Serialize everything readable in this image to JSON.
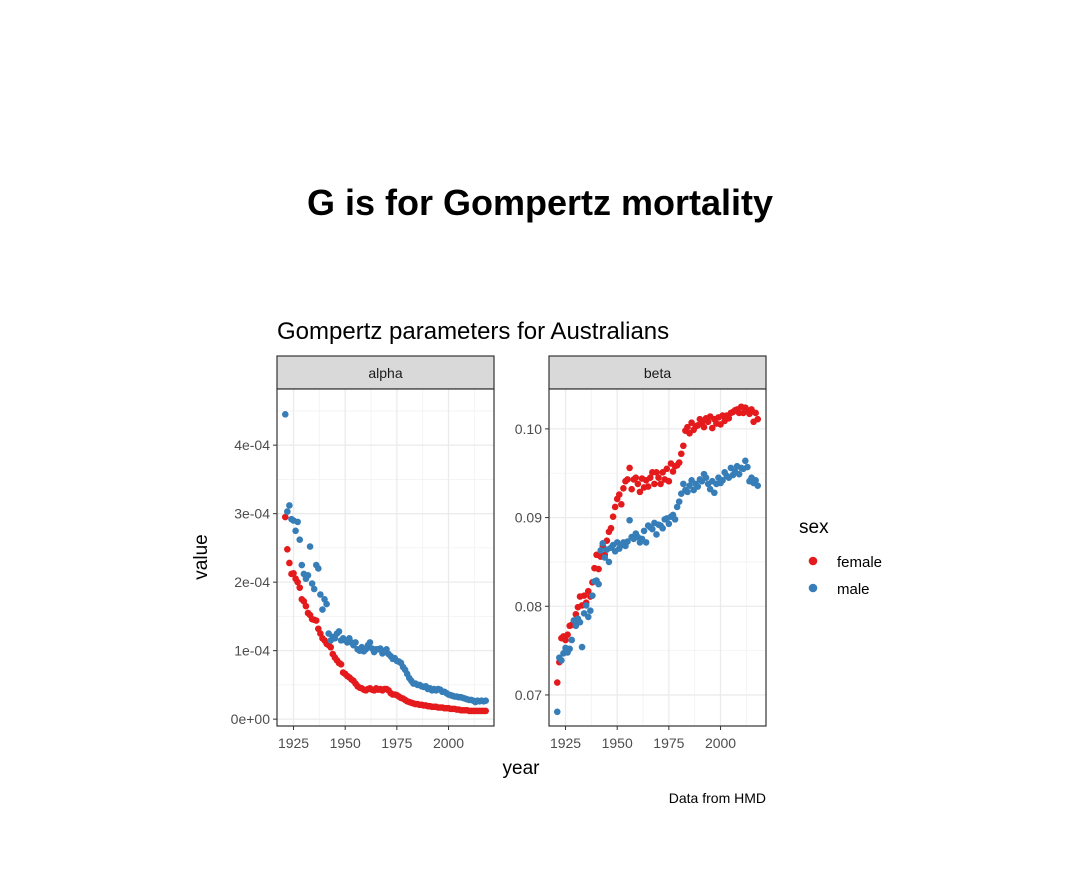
{
  "slide": {
    "title": "G is for Gompertz mortality"
  },
  "chart_data": {
    "type": "scatter",
    "title": "Gompertz parameters for Australians",
    "xlabel": "year",
    "ylabel": "value",
    "caption": "Data from HMD",
    "legend": {
      "title": "sex",
      "position": "right"
    },
    "grid": true,
    "series_colors": {
      "female": "#E41A1C",
      "male": "#377EB8"
    },
    "panels": [
      {
        "strip": "alpha",
        "xlim": [
          1917,
          2022
        ],
        "ylim": [
          -1e-05,
          0.000482
        ],
        "x_ticks": [
          1925,
          1950,
          1975,
          2000
        ],
        "x_tick_labels": [
          "1925",
          "1950",
          "1975",
          "2000"
        ],
        "y_ticks": [
          0,
          0.0001,
          0.0002,
          0.0003,
          0.0004
        ],
        "y_tick_labels": [
          "0e+00",
          "1e-04",
          "2e-04",
          "3e-04",
          "4e-04"
        ],
        "series": [
          {
            "name": "female",
            "x": [
              1921,
              1922,
              1923,
              1924,
              1925,
              1926,
              1927,
              1928,
              1929,
              1930,
              1931,
              1932,
              1933,
              1934,
              1935,
              1936,
              1937,
              1938,
              1939,
              1940,
              1941,
              1942,
              1943,
              1944,
              1945,
              1946,
              1947,
              1948,
              1949,
              1950,
              1951,
              1952,
              1953,
              1954,
              1955,
              1956,
              1957,
              1958,
              1959,
              1960,
              1961,
              1962,
              1963,
              1964,
              1965,
              1966,
              1967,
              1968,
              1969,
              1970,
              1971,
              1972,
              1973,
              1974,
              1975,
              1976,
              1977,
              1978,
              1979,
              1980,
              1981,
              1982,
              1983,
              1984,
              1985,
              1986,
              1987,
              1988,
              1989,
              1990,
              1991,
              1992,
              1993,
              1994,
              1995,
              1996,
              1997,
              1998,
              1999,
              2000,
              2001,
              2002,
              2003,
              2004,
              2005,
              2006,
              2007,
              2008,
              2009,
              2010,
              2011,
              2012,
              2013,
              2014,
              2015,
              2016,
              2017,
              2018
            ],
            "y": [
              0.000295,
              0.000248,
              0.000228,
              0.000212,
              0.000213,
              0.000205,
              0.0002,
              0.000192,
              0.000175,
              0.000172,
              0.000165,
              0.000155,
              0.000152,
              0.000146,
              0.000145,
              0.000144,
              0.000132,
              0.000125,
              0.000118,
              0.000115,
              0.00011,
              0.000108,
              0.000105,
              9.5e-05,
              9e-05,
              8.6e-05,
              8.2e-05,
              8e-05,
              6.8e-05,
              6.6e-05,
              6.3e-05,
              6.1e-05,
              5.8e-05,
              5.6e-05,
              5.2e-05,
              4.8e-05,
              4.6e-05,
              4.5e-05,
              4.3e-05,
              4.2e-05,
              4.4e-05,
              4.5e-05,
              4.3e-05,
              4.2e-05,
              4.5e-05,
              4.3e-05,
              4.4e-05,
              4.2e-05,
              4.4e-05,
              4.4e-05,
              4.2e-05,
              3.8e-05,
              3.6e-05,
              3.6e-05,
              3.5e-05,
              3.3e-05,
              3.1e-05,
              3e-05,
              2.8e-05,
              2.6e-05,
              2.5e-05,
              2.4e-05,
              2.3e-05,
              2.2e-05,
              2.2e-05,
              2.1e-05,
              2.1e-05,
              2e-05,
              2e-05,
              1.9e-05,
              1.9e-05,
              1.8e-05,
              1.8e-05,
              1.8e-05,
              1.7e-05,
              1.7e-05,
              1.7e-05,
              1.6e-05,
              1.6e-05,
              1.6e-05,
              1.5e-05,
              1.5e-05,
              1.5e-05,
              1.4e-05,
              1.4e-05,
              1.3e-05,
              1.3e-05,
              1.3e-05,
              1.3e-05,
              1.2e-05,
              1.2e-05,
              1.2e-05,
              1.2e-05,
              1.2e-05,
              1.2e-05,
              1.2e-05,
              1.2e-05,
              1.2e-05
            ]
          },
          {
            "name": "male",
            "x": [
              1921,
              1922,
              1923,
              1924,
              1925,
              1926,
              1927,
              1928,
              1929,
              1930,
              1931,
              1932,
              1933,
              1934,
              1935,
              1936,
              1937,
              1938,
              1939,
              1940,
              1941,
              1942,
              1943,
              1944,
              1945,
              1946,
              1947,
              1948,
              1949,
              1950,
              1951,
              1952,
              1953,
              1954,
              1955,
              1956,
              1957,
              1958,
              1959,
              1960,
              1961,
              1962,
              1963,
              1964,
              1965,
              1966,
              1967,
              1968,
              1969,
              1970,
              1971,
              1972,
              1973,
              1974,
              1975,
              1976,
              1977,
              1978,
              1979,
              1980,
              1981,
              1982,
              1983,
              1984,
              1985,
              1986,
              1987,
              1988,
              1989,
              1990,
              1991,
              1992,
              1993,
              1994,
              1995,
              1996,
              1997,
              1998,
              1999,
              2000,
              2001,
              2002,
              2003,
              2004,
              2005,
              2006,
              2007,
              2008,
              2009,
              2010,
              2011,
              2012,
              2013,
              2014,
              2015,
              2016,
              2017,
              2018
            ],
            "y": [
              0.000445,
              0.000303,
              0.000312,
              0.000292,
              0.00029,
              0.000275,
              0.000288,
              0.000262,
              0.000225,
              0.000212,
              0.000205,
              0.00021,
              0.000252,
              0.000198,
              0.00019,
              0.000225,
              0.00022,
              0.000182,
              0.00016,
              0.000175,
              0.000168,
              0.000125,
              0.000115,
              0.00012,
              0.000118,
              0.000125,
              0.000128,
              0.000115,
              0.000118,
              0.000115,
              0.000112,
              0.000118,
              0.000112,
              0.000108,
              0.000112,
              0.000102,
              0.0001,
              0.000105,
              9.9e-05,
              0.000102,
              0.000108,
              0.000112,
              0.000103,
              9.8e-05,
              0.000102,
              0.000102,
              0.000103,
              9.6e-05,
              9.8e-05,
              0.000102,
              9.5e-05,
              9.2e-05,
              8.8e-05,
              8.9e-05,
              8.5e-05,
              8.4e-05,
              8.2e-05,
              7.6e-05,
              7.2e-05,
              6.6e-05,
              6e-05,
              5.6e-05,
              5.2e-05,
              5.2e-05,
              5e-05,
              5e-05,
              4.8e-05,
              4.7e-05,
              4.8e-05,
              4.4e-05,
              4.5e-05,
              4.2e-05,
              4.4e-05,
              4.2e-05,
              4.4e-05,
              4.3e-05,
              4e-05,
              4e-05,
              3.8e-05,
              3.6e-05,
              3.5e-05,
              3.4e-05,
              3.3e-05,
              3.3e-05,
              3.2e-05,
              3.2e-05,
              3.1e-05,
              3e-05,
              2.9e-05,
              2.8e-05,
              2.8e-05,
              2.7e-05,
              2.5e-05,
              2.7e-05,
              2.6e-05,
              2.7e-05,
              2.6e-05,
              2.7e-05
            ]
          }
        ]
      },
      {
        "strip": "beta",
        "xlim": [
          1917,
          2022
        ],
        "ylim": [
          0.0665,
          0.1045
        ],
        "x_ticks": [
          1925,
          1950,
          1975,
          2000
        ],
        "x_tick_labels": [
          "1925",
          "1950",
          "1975",
          "2000"
        ],
        "y_ticks": [
          0.07,
          0.08,
          0.09,
          0.1
        ],
        "y_tick_labels": [
          "0.07",
          "0.08",
          "0.09",
          "0.10"
        ],
        "series": [
          {
            "name": "female",
            "x": [
              1921,
              1922,
              1923,
              1924,
              1925,
              1926,
              1927,
              1928,
              1929,
              1930,
              1931,
              1932,
              1933,
              1934,
              1935,
              1936,
              1937,
              1938,
              1939,
              1940,
              1941,
              1942,
              1943,
              1944,
              1945,
              1946,
              1947,
              1948,
              1949,
              1950,
              1951,
              1952,
              1953,
              1954,
              1955,
              1956,
              1957,
              1958,
              1959,
              1960,
              1961,
              1962,
              1963,
              1964,
              1965,
              1966,
              1967,
              1968,
              1969,
              1970,
              1971,
              1972,
              1973,
              1974,
              1975,
              1976,
              1977,
              1978,
              1979,
              1980,
              1981,
              1982,
              1983,
              1984,
              1985,
              1986,
              1987,
              1988,
              1989,
              1990,
              1991,
              1992,
              1993,
              1994,
              1995,
              1996,
              1997,
              1998,
              1999,
              2000,
              2001,
              2002,
              2003,
              2004,
              2005,
              2006,
              2007,
              2008,
              2009,
              2010,
              2011,
              2012,
              2013,
              2014,
              2015,
              2016,
              2017,
              2018
            ],
            "y": [
              0.0714,
              0.0737,
              0.0764,
              0.0766,
              0.0762,
              0.0768,
              0.0778,
              0.0779,
              0.0781,
              0.0791,
              0.0799,
              0.0811,
              0.0801,
              0.0812,
              0.0804,
              0.0817,
              0.0811,
              0.0827,
              0.0843,
              0.0858,
              0.0842,
              0.0856,
              0.0868,
              0.0858,
              0.0874,
              0.0884,
              0.0888,
              0.0901,
              0.0912,
              0.0921,
              0.0926,
              0.0915,
              0.0933,
              0.0941,
              0.0943,
              0.0956,
              0.0932,
              0.0943,
              0.0945,
              0.0938,
              0.0929,
              0.0944,
              0.0934,
              0.0942,
              0.0935,
              0.0945,
              0.0951,
              0.0938,
              0.0951,
              0.0945,
              0.0938,
              0.0951,
              0.0943,
              0.0955,
              0.0941,
              0.0961,
              0.0952,
              0.0958,
              0.0959,
              0.0962,
              0.0972,
              0.0981,
              0.0998,
              0.1002,
              0.0995,
              0.1007,
              0.0999,
              0.1003,
              0.1004,
              0.1011,
              0.1007,
              0.1002,
              0.1012,
              0.1008,
              0.1014,
              0.1001,
              0.1011,
              0.1006,
              0.1013,
              0.1005,
              0.1015,
              0.1009,
              0.1015,
              0.1012,
              0.1018,
              0.1019,
              0.1021,
              0.1022,
              0.1018,
              0.1025,
              0.1018,
              0.1024,
              0.1021,
              0.1017,
              0.1022,
              0.1008,
              0.1018,
              0.1011
            ]
          },
          {
            "name": "male",
            "x": [
              1921,
              1922,
              1923,
              1924,
              1925,
              1926,
              1927,
              1928,
              1929,
              1930,
              1931,
              1932,
              1933,
              1934,
              1935,
              1936,
              1937,
              1938,
              1939,
              1940,
              1941,
              1942,
              1943,
              1944,
              1945,
              1946,
              1947,
              1948,
              1949,
              1950,
              1951,
              1952,
              1953,
              1954,
              1955,
              1956,
              1957,
              1958,
              1959,
              1960,
              1961,
              1962,
              1963,
              1964,
              1965,
              1966,
              1967,
              1968,
              1969,
              1970,
              1971,
              1972,
              1973,
              1974,
              1975,
              1976,
              1977,
              1978,
              1979,
              1980,
              1981,
              1982,
              1983,
              1984,
              1985,
              1986,
              1987,
              1988,
              1989,
              1990,
              1991,
              1992,
              1993,
              1994,
              1995,
              1996,
              1997,
              1998,
              1999,
              2000,
              2001,
              2002,
              2003,
              2004,
              2005,
              2006,
              2007,
              2008,
              2009,
              2010,
              2011,
              2012,
              2013,
              2014,
              2015,
              2016,
              2017,
              2018
            ],
            "y": [
              0.0681,
              0.0742,
              0.0739,
              0.0747,
              0.0753,
              0.0748,
              0.0752,
              0.0762,
              0.0784,
              0.0778,
              0.0786,
              0.0782,
              0.0754,
              0.0792,
              0.0801,
              0.0788,
              0.0795,
              0.0812,
              0.0828,
              0.0829,
              0.0825,
              0.0863,
              0.0871,
              0.0855,
              0.0864,
              0.085,
              0.0866,
              0.0869,
              0.0862,
              0.0872,
              0.0865,
              0.0869,
              0.0872,
              0.0868,
              0.0873,
              0.0897,
              0.0878,
              0.0876,
              0.0882,
              0.0878,
              0.0872,
              0.0876,
              0.0885,
              0.0872,
              0.0891,
              0.0889,
              0.0887,
              0.0894,
              0.0881,
              0.0892,
              0.0891,
              0.0888,
              0.0898,
              0.0899,
              0.0893,
              0.0901,
              0.0903,
              0.0898,
              0.0912,
              0.0918,
              0.0927,
              0.0938,
              0.0931,
              0.0929,
              0.0936,
              0.0942,
              0.0931,
              0.0938,
              0.0935,
              0.0943,
              0.0941,
              0.0949,
              0.0945,
              0.0938,
              0.0932,
              0.0941,
              0.0928,
              0.0938,
              0.0945,
              0.0939,
              0.0942,
              0.0951,
              0.0947,
              0.0945,
              0.0956,
              0.0948,
              0.0952,
              0.0958,
              0.0949,
              0.0956,
              0.0955,
              0.0964,
              0.0957,
              0.0941,
              0.0945,
              0.0939,
              0.0942,
              0.0936
            ]
          }
        ]
      }
    ]
  }
}
